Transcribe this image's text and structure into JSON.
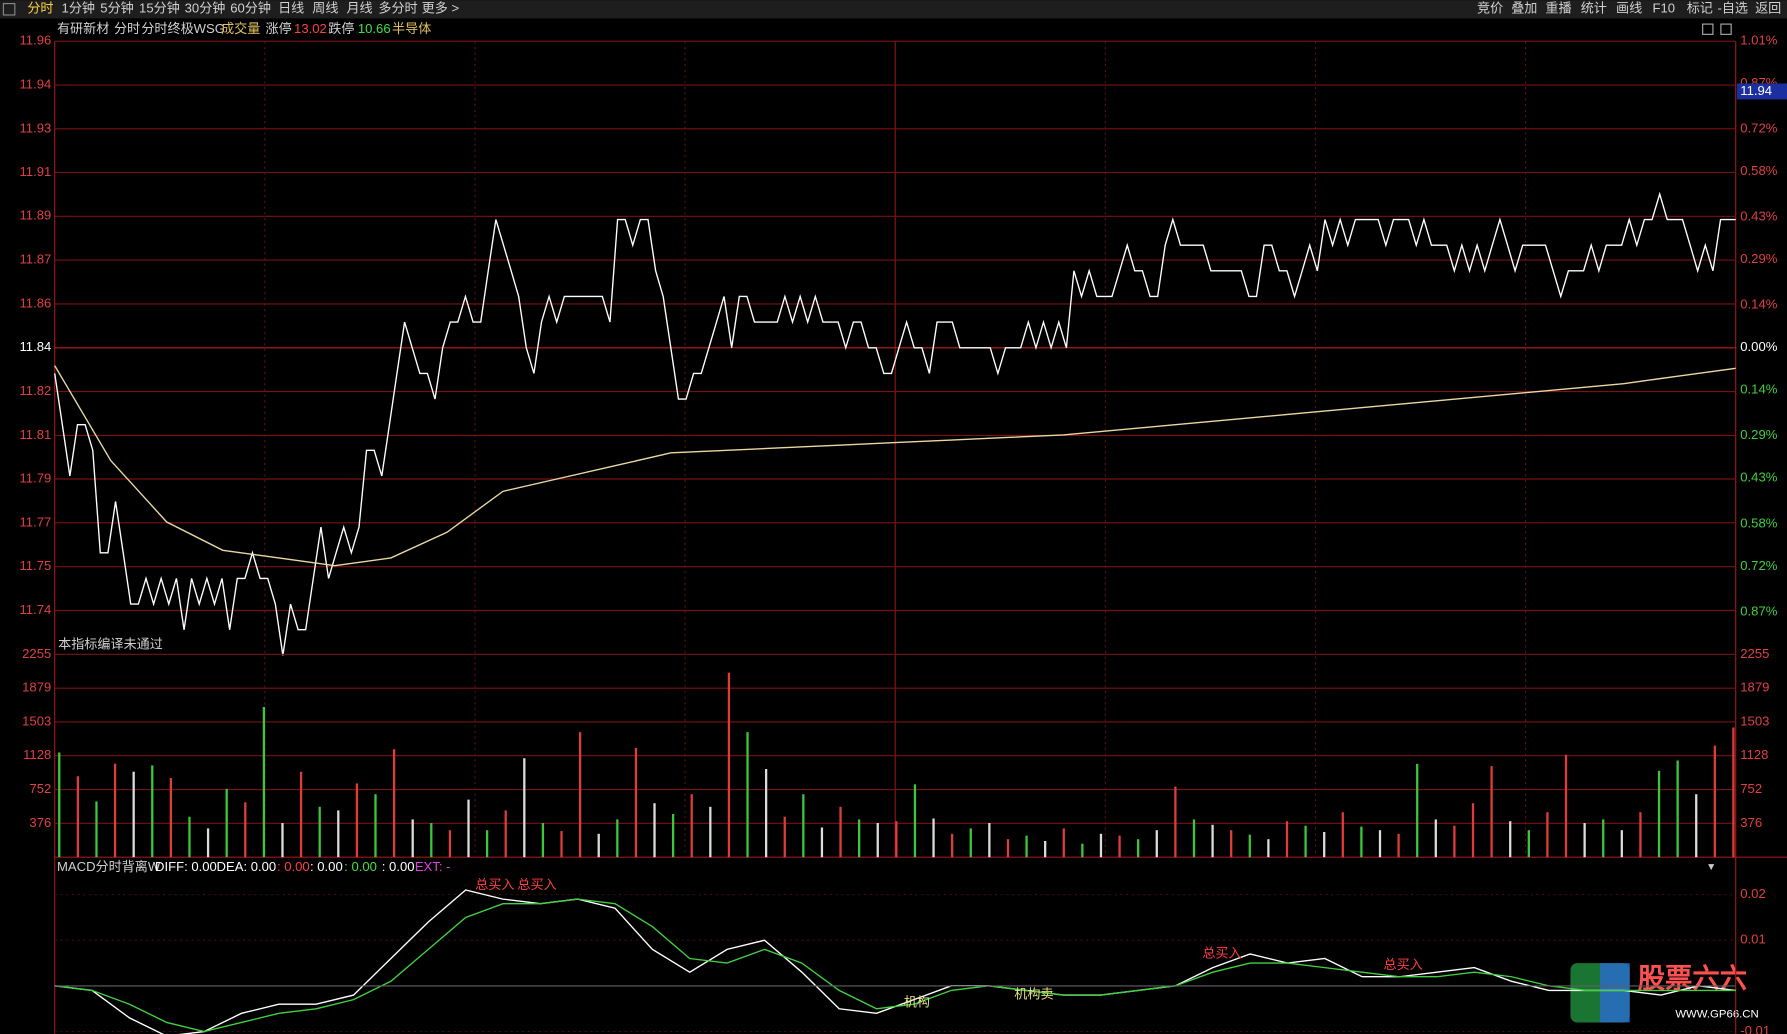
{
  "toolbar": {
    "left": [
      "分时",
      "1分钟",
      "5分钟",
      "15分钟",
      "30分钟",
      "60分钟",
      "日线",
      "周线",
      "月线",
      "多分时",
      "更多 >"
    ],
    "right": [
      "竞价",
      "叠加",
      "重播",
      "统计",
      "画线",
      "F10",
      "标记",
      "-自选",
      "返回"
    ]
  },
  "header": {
    "stock": "有研新材",
    "period": "分时",
    "indicator": "分时终极WSG",
    "volume": "成交量",
    "limit_up_label": "涨停",
    "limit_up": 13.02,
    "limit_down_label": "跌停",
    "limit_down": 10.66,
    "sector": "半导体"
  },
  "chart_data": [
    {
      "type": "line",
      "grid": true,
      "marker": 11.94,
      "ylim": [
        11.7204,
        11.9596
      ],
      "yticks": [
        {
          "value": 11.9596,
          "label": "11.96"
        },
        {
          "value": 11.9425,
          "label": "11.94"
        },
        {
          "value": 11.9254,
          "label": "11.93"
        },
        {
          "value": 11.9084,
          "label": "11.91"
        },
        {
          "value": 11.8913,
          "label": "11.89"
        },
        {
          "value": 11.8742,
          "label": "11.87"
        },
        {
          "value": 11.8571,
          "label": "11.86"
        },
        {
          "value": 11.84,
          "label": "11.84"
        },
        {
          "value": 11.8229,
          "label": "11.82"
        },
        {
          "value": 11.8058,
          "label": "11.81"
        },
        {
          "value": 11.7888,
          "label": "11.79"
        },
        {
          "value": 11.7717,
          "label": "11.77"
        },
        {
          "value": 11.7546,
          "label": "11.75"
        },
        {
          "value": 11.7375,
          "label": "11.74"
        }
      ],
      "y2lim": [
        -1.01,
        1.01
      ],
      "y2ticks": [
        {
          "value": 1.01,
          "label": "1.01%"
        },
        {
          "value": 0.87,
          "label": "0.87%"
        },
        {
          "value": 0.72,
          "label": "0.72%"
        },
        {
          "value": 0.58,
          "label": "0.58%"
        },
        {
          "value": 0.43,
          "label": "0.43%"
        },
        {
          "value": 0.29,
          "label": "0.29%"
        },
        {
          "value": 0.14,
          "label": "0.14%"
        },
        {
          "value": 0,
          "label": "0.00%"
        },
        {
          "value": -0.14,
          "label": "0.14%"
        },
        {
          "value": -0.29,
          "label": "0.29%"
        },
        {
          "value": -0.43,
          "label": "0.43%"
        },
        {
          "value": -0.58,
          "label": "0.58%"
        },
        {
          "value": -0.72,
          "label": "0.72%"
        },
        {
          "value": -0.87,
          "label": "0.87%"
        }
      ],
      "series": [
        {
          "color": "#ffffff",
          "values": [
            11.83,
            11.81,
            11.79,
            11.81,
            11.81,
            11.8,
            11.76,
            11.76,
            11.78,
            11.76,
            11.74,
            11.74,
            11.75,
            11.74,
            11.75,
            11.74,
            11.75,
            11.73,
            11.75,
            11.74,
            11.75,
            11.74,
            11.75,
            11.73,
            11.75,
            11.75,
            11.76,
            11.75,
            11.75,
            11.74,
            11.72,
            11.74,
            11.73,
            11.73,
            11.75,
            11.77,
            11.75,
            11.76,
            11.77,
            11.76,
            11.77,
            11.8,
            11.8,
            11.79,
            11.81,
            11.83,
            11.85,
            11.84,
            11.83,
            11.83,
            11.82,
            11.84,
            11.85,
            11.85,
            11.86,
            11.85,
            11.85,
            11.87,
            11.89,
            11.88,
            11.87,
            11.86,
            11.84,
            11.83,
            11.85,
            11.86,
            11.85,
            11.86,
            11.86,
            11.86,
            11.86,
            11.86,
            11.86,
            11.85,
            11.89,
            11.89,
            11.88,
            11.89,
            11.89,
            11.87,
            11.86,
            11.84,
            11.82,
            11.82,
            11.83,
            11.83,
            11.84,
            11.85,
            11.86,
            11.84,
            11.86,
            11.86,
            11.85,
            11.85,
            11.85,
            11.85,
            11.86,
            11.85,
            11.86,
            11.85,
            11.86,
            11.85,
            11.85,
            11.85,
            11.84,
            11.85,
            11.85,
            11.84,
            11.84,
            11.83,
            11.83,
            11.84,
            11.85,
            11.84,
            11.84,
            11.83,
            11.85,
            11.85,
            11.85,
            11.84,
            11.84,
            11.84,
            11.84,
            11.84,
            11.83,
            11.84,
            11.84,
            11.84,
            11.85,
            11.84,
            11.85,
            11.84,
            11.85,
            11.84,
            11.87,
            11.86,
            11.87,
            11.86,
            11.86,
            11.86,
            11.87,
            11.88,
            11.87,
            11.87,
            11.86,
            11.86,
            11.88,
            11.89,
            11.88,
            11.88,
            11.88,
            11.88,
            11.87,
            11.87,
            11.87,
            11.87,
            11.87,
            11.86,
            11.86,
            11.88,
            11.88,
            11.87,
            11.87,
            11.86,
            11.87,
            11.88,
            11.87,
            11.89,
            11.88,
            11.89,
            11.88,
            11.89,
            11.89,
            11.89,
            11.89,
            11.88,
            11.89,
            11.89,
            11.89,
            11.88,
            11.89,
            11.88,
            11.88,
            11.88,
            11.87,
            11.88,
            11.87,
            11.88,
            11.87,
            11.88,
            11.89,
            11.88,
            11.87,
            11.88,
            11.88,
            11.88,
            11.88,
            11.87,
            11.86,
            11.87,
            11.87,
            11.87,
            11.88,
            11.87,
            11.88,
            11.88,
            11.88,
            11.89,
            11.88,
            11.89,
            11.89,
            11.9,
            11.89,
            11.89,
            11.89,
            11.88,
            11.87,
            11.88,
            11.87,
            11.89,
            11.89,
            11.89
          ]
        },
        {
          "color": "#e8d8a0",
          "values": [
            11.833,
            11.796,
            11.772,
            11.761,
            11.758,
            11.755,
            11.758,
            11.768,
            11.784,
            11.789,
            11.794,
            11.799,
            11.8,
            11.801,
            11.802,
            11.803,
            11.804,
            11.805,
            11.806,
            11.808,
            11.81,
            11.812,
            11.814,
            11.816,
            11.818,
            11.82,
            11.822,
            11.824,
            11.826,
            11.829,
            11.832
          ]
        }
      ]
    },
    {
      "type": "bar",
      "note": "本指标编译未通过",
      "ylim": [
        0,
        2255
      ],
      "yticks": [
        376,
        752,
        1128,
        1503,
        1879,
        2255
      ],
      "values": [
        1164,
        900,
        620,
        1040,
        950,
        1020,
        880,
        450,
        320,
        760,
        610,
        1670,
        380,
        950,
        560,
        520,
        820,
        700,
        1200,
        420,
        380,
        300,
        640,
        300,
        520,
        1100,
        380,
        290,
        1390,
        260,
        420,
        1215,
        600,
        480,
        700,
        560,
        2050,
        1390,
        980,
        450,
        700,
        330,
        560,
        420,
        380,
        400,
        810,
        430,
        260,
        320,
        380,
        200,
        240,
        180,
        320,
        150,
        260,
        240,
        200,
        300,
        785,
        420,
        360,
        300,
        250,
        200,
        400,
        350,
        280,
        500,
        340,
        300,
        260,
        1037,
        420,
        350,
        600,
        1012,
        400,
        300,
        500,
        1138,
        380,
        420,
        300,
        500,
        960,
        1075,
        700,
        1240,
        1442
      ],
      "colors": [
        "#3cc83c",
        "#e03c3c",
        "#3cc83c",
        "#e03c3c",
        "#dcdcdc",
        "#3cc83c",
        "#e03c3c",
        "#3cc83c",
        "#dcdcdc",
        "#3cc83c",
        "#e03c3c",
        "#3cc83c",
        "#dcdcdc",
        "#e03c3c",
        "#3cc83c",
        "#dcdcdc",
        "#e03c3c",
        "#3cc83c",
        "#e03c3c",
        "#dcdcdc",
        "#3cc83c",
        "#e03c3c",
        "#dcdcdc",
        "#3cc83c",
        "#e03c3c",
        "#dcdcdc",
        "#3cc83c",
        "#e03c3c",
        "#e03c3c",
        "#dcdcdc",
        "#3cc83c",
        "#e03c3c",
        "#dcdcdc",
        "#3cc83c",
        "#e03c3c",
        "#dcdcdc",
        "#e03c3c",
        "#3cc83c",
        "#dcdcdc",
        "#e03c3c",
        "#3cc83c",
        "#dcdcdc",
        "#e03c3c",
        "#3cc83c",
        "#dcdcdc",
        "#e03c3c",
        "#3cc83c",
        "#dcdcdc",
        "#e03c3c",
        "#3cc83c",
        "#dcdcdc",
        "#e03c3c",
        "#3cc83c",
        "#dcdcdc",
        "#e03c3c",
        "#3cc83c",
        "#dcdcdc",
        "#e03c3c",
        "#3cc83c",
        "#dcdcdc",
        "#e03c3c",
        "#3cc83c",
        "#dcdcdc",
        "#e03c3c",
        "#3cc83c",
        "#dcdcdc",
        "#e03c3c",
        "#3cc83c",
        "#dcdcdc",
        "#e03c3c",
        "#3cc83c",
        "#dcdcdc",
        "#e03c3c",
        "#3cc83c",
        "#dcdcdc",
        "#e03c3c",
        "#e03c3c",
        "#e03c3c",
        "#dcdcdc",
        "#3cc83c",
        "#e03c3c",
        "#e03c3c",
        "#dcdcdc",
        "#3cc83c",
        "#dcdcdc",
        "#e03c3c",
        "#3cc83c",
        "#3cc83c",
        "#dcdcdc",
        "#e03c3c",
        "#e03c3c"
      ]
    },
    {
      "type": "line",
      "title": "MACD分时背离W",
      "stats": [
        {
          "text": "DIFF: 0.00",
          "color": "#ffffff"
        },
        {
          "text": "DEA: 0.00",
          "color": "#ffffff"
        },
        {
          "text": ": 0.00",
          "color": "#ff4040"
        },
        {
          "text": ": 0.00",
          "color": "#ffffff"
        },
        {
          "text": ": 0.00",
          "color": "#40e040"
        },
        {
          "text": ": 0.00",
          "color": "#ffffff"
        },
        {
          "text": "EXT: -",
          "color": "#e040e0"
        }
      ],
      "annotations": [
        "总买入",
        "总买入",
        "总买入",
        "总买入",
        "机构",
        "机构卖"
      ],
      "ylim": [
        -0.0105,
        0.0237
      ],
      "yticks": [
        0.02,
        0.01,
        -0.01
      ],
      "series": [
        {
          "color": "#ffffff",
          "values": [
            0,
            -0.001,
            -0.007,
            -0.011,
            -0.01,
            -0.006,
            -0.004,
            -0.004,
            -0.002,
            0.006,
            0.014,
            0.021,
            0.019,
            0.018,
            0.019,
            0.017,
            0.008,
            0.003,
            0.008,
            0.01,
            0.003,
            -0.005,
            -0.006,
            -0.003,
            0,
            0,
            -0.001,
            -0.002,
            -0.002,
            -0.001,
            0,
            0.004,
            0.007,
            0.005,
            0.006,
            0.002,
            0.002,
            0.003,
            0.004,
            0.001,
            -0.001,
            -0.001,
            -0.001,
            -0.002,
            0,
            -0.001
          ]
        },
        {
          "color": "#40d040",
          "values": [
            0,
            -0.001,
            -0.004,
            -0.008,
            -0.01,
            -0.008,
            -0.006,
            -0.005,
            -0.003,
            0.001,
            0.008,
            0.015,
            0.018,
            0.018,
            0.019,
            0.018,
            0.013,
            0.006,
            0.005,
            0.008,
            0.005,
            -0.001,
            -0.005,
            -0.004,
            -0.001,
            0,
            -0.001,
            -0.002,
            -0.002,
            -0.001,
            0,
            0.003,
            0.005,
            0.005,
            0.004,
            0.003,
            0.002,
            0.002,
            0.003,
            0.002,
            0,
            -0.001,
            -0.001,
            -0.001,
            -0.001,
            -0.001
          ]
        }
      ]
    }
  ],
  "watermark": {
    "brand": "股票六六",
    "url": "WWW.GP66.CN"
  }
}
